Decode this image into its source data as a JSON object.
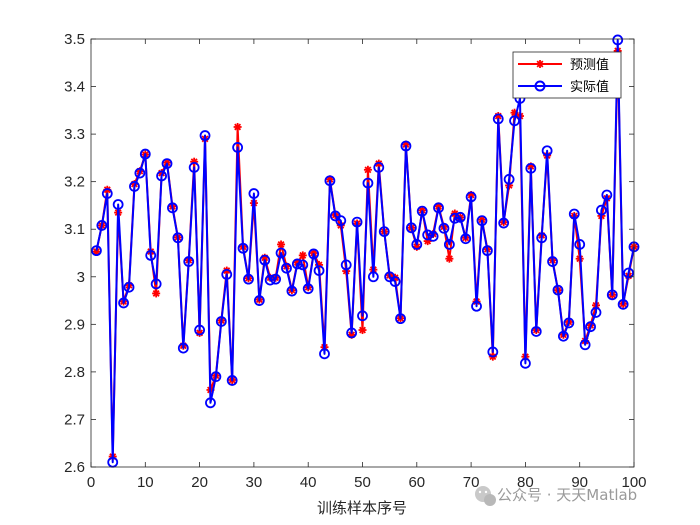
{
  "chart_data": {
    "type": "line",
    "xlabel": "训练样本序号",
    "ylabel": "",
    "xlim": [
      0,
      100
    ],
    "ylim": [
      2.6,
      3.5
    ],
    "xticks": [
      "0",
      "10",
      "20",
      "30",
      "40",
      "50",
      "60",
      "70",
      "80",
      "90",
      "100"
    ],
    "yticks": [
      "2.6",
      "2.7",
      "2.8",
      "2.9",
      "3",
      "3.1",
      "3.2",
      "3.3",
      "3.4",
      "3.5"
    ],
    "grid": false,
    "legend_position": "top-right",
    "x": [
      1,
      2,
      3,
      4,
      5,
      6,
      7,
      8,
      9,
      10,
      11,
      12,
      13,
      14,
      15,
      16,
      17,
      18,
      19,
      20,
      21,
      22,
      23,
      24,
      25,
      26,
      27,
      28,
      29,
      30,
      31,
      32,
      33,
      34,
      35,
      36,
      37,
      38,
      39,
      40,
      41,
      42,
      43,
      44,
      45,
      46,
      47,
      48,
      49,
      50,
      51,
      52,
      53,
      54,
      55,
      56,
      57,
      58,
      59,
      60,
      61,
      62,
      63,
      64,
      65,
      66,
      67,
      68,
      69,
      70,
      71,
      72,
      73,
      74,
      75,
      76,
      77,
      78,
      79,
      80,
      81,
      82,
      83,
      84,
      85,
      86,
      87,
      88,
      89,
      90,
      91,
      92,
      93,
      94,
      95,
      96,
      97,
      98,
      99,
      100
    ],
    "series": [
      {
        "name": "预测值",
        "color": "#ff0000",
        "marker": "asterisk",
        "values": [
          3.053,
          3.108,
          3.183,
          2.622,
          3.135,
          2.948,
          2.982,
          3.195,
          3.222,
          3.257,
          3.053,
          2.965,
          3.218,
          3.24,
          3.148,
          3.083,
          2.855,
          3.035,
          3.242,
          2.882,
          3.29,
          2.762,
          2.792,
          2.908,
          3.013,
          2.783,
          3.315,
          3.063,
          2.997,
          3.155,
          2.952,
          3.04,
          2.998,
          2.998,
          3.068,
          3.022,
          2.972,
          3.03,
          3.045,
          2.978,
          3.05,
          3.025,
          2.852,
          3.205,
          3.13,
          3.108,
          3.012,
          2.878,
          3.112,
          2.888,
          3.225,
          3.015,
          3.238,
          3.095,
          3.003,
          2.998,
          2.913,
          3.278,
          3.103,
          3.063,
          3.14,
          3.075,
          3.09,
          3.148,
          3.105,
          3.038,
          3.133,
          3.125,
          3.082,
          3.172,
          2.948,
          3.12,
          3.058,
          2.832,
          3.338,
          3.115,
          3.192,
          3.345,
          3.338,
          2.832,
          3.232,
          2.888,
          3.087,
          3.255,
          3.035,
          2.972,
          2.878,
          2.905,
          3.128,
          3.038,
          2.865,
          2.898,
          2.94,
          3.128,
          3.165,
          2.962,
          3.475,
          2.943,
          3.002,
          3.063
        ]
      },
      {
        "name": "实际值",
        "color": "#0000ff",
        "marker": "circle",
        "values": [
          3.055,
          3.108,
          3.175,
          2.61,
          3.152,
          2.945,
          2.978,
          3.19,
          3.218,
          3.258,
          3.045,
          2.985,
          3.212,
          3.238,
          3.145,
          3.082,
          2.85,
          3.032,
          3.23,
          2.888,
          3.297,
          2.735,
          2.79,
          2.906,
          3.005,
          2.782,
          3.272,
          3.06,
          2.995,
          3.175,
          2.95,
          3.035,
          2.993,
          2.995,
          3.05,
          3.018,
          2.97,
          3.027,
          3.025,
          2.975,
          3.048,
          3.013,
          2.838,
          3.202,
          3.128,
          3.118,
          3.025,
          2.882,
          3.115,
          2.918,
          3.197,
          3.0,
          3.23,
          3.095,
          3.0,
          2.99,
          2.912,
          3.275,
          3.103,
          3.068,
          3.138,
          3.088,
          3.085,
          3.145,
          3.102,
          3.068,
          3.123,
          3.125,
          3.08,
          3.168,
          2.938,
          3.118,
          3.055,
          2.842,
          3.332,
          3.113,
          3.205,
          3.328,
          3.375,
          2.818,
          3.228,
          2.885,
          3.082,
          3.265,
          3.032,
          2.972,
          2.875,
          2.903,
          3.132,
          3.068,
          2.857,
          2.895,
          2.925,
          3.14,
          3.172,
          2.962,
          3.498,
          2.942,
          3.008,
          3.063
        ]
      }
    ]
  },
  "watermark": {
    "text": "公众号 · 天天Matlab",
    "icon": "wechat-icon"
  }
}
